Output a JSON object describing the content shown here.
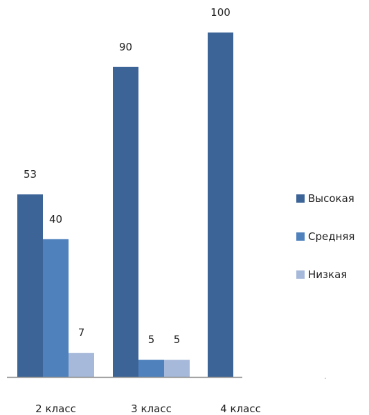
{
  "chart_data": {
    "type": "bar",
    "categories": [
      "2 класс",
      "3 класс",
      "4 класс"
    ],
    "series": [
      {
        "name": "Высокая",
        "values": [
          53,
          90,
          100
        ],
        "color": "#3C6497"
      },
      {
        "name": "Средняя",
        "values": [
          40,
          5,
          null
        ],
        "color": "#4F81BD"
      },
      {
        "name": "Низкая",
        "values": [
          7,
          5,
          null
        ],
        "color": "#A7B9DA"
      }
    ],
    "ylim": [
      0,
      100
    ],
    "grid": false,
    "legend": "right"
  }
}
